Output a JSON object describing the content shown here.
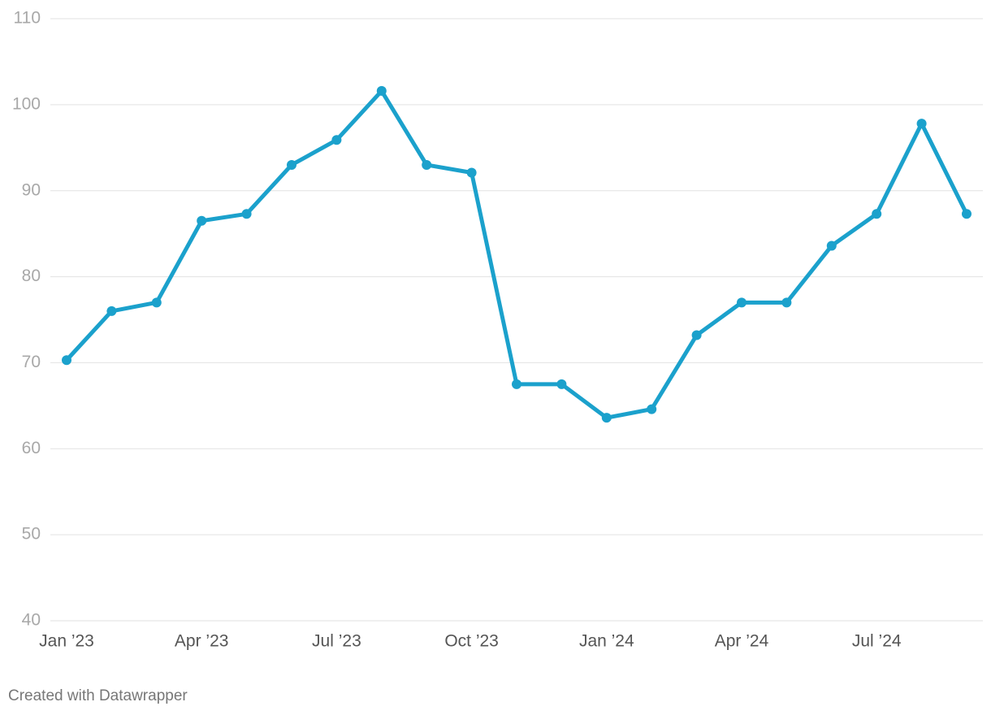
{
  "chart_data": {
    "type": "line",
    "categories": [
      "Jan ’23",
      null,
      null,
      "Apr ’23",
      null,
      null,
      "Jul ’23",
      null,
      null,
      "Oct ’23",
      null,
      null,
      "Jan ’24",
      null,
      null,
      "Apr ’24",
      null,
      null,
      "Jul ’24",
      null,
      null
    ],
    "series": [
      {
        "color": "#1ba1cc",
        "values": [
          70.3,
          76.0,
          77.0,
          86.5,
          87.3,
          93.0,
          95.9,
          101.6,
          93.0,
          92.1,
          67.5,
          67.5,
          63.6,
          64.6,
          73.2,
          77.0,
          77.0,
          83.6,
          87.3,
          97.8,
          87.3
        ]
      }
    ],
    "ylim": [
      40,
      110
    ],
    "yticks": [
      40,
      50,
      60,
      70,
      80,
      90,
      100,
      110
    ],
    "grid": true,
    "footer": "Created with Datawrapper"
  }
}
